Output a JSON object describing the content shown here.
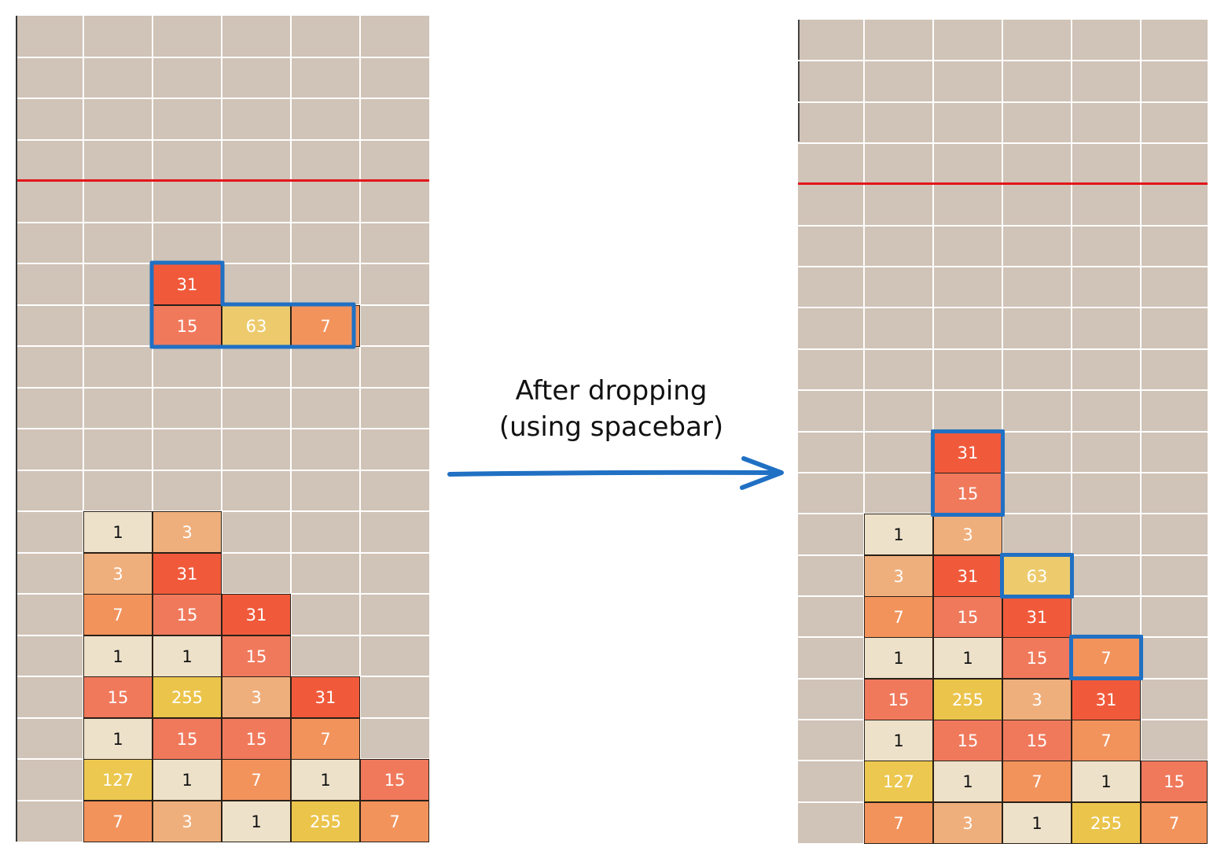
{
  "caption": {
    "line1": "After dropping",
    "line2": "(using spacebar)"
  },
  "colors": {
    "board_bg": "#d0c3b7",
    "grid": "#ffffff",
    "limit_line": "#e3151a",
    "highlight": "#2070c3",
    "tile_1": "#ede1ca",
    "tile_3": "#efaf7c",
    "tile_7": "#f2935c",
    "tile_15": "#f0795c",
    "tile_31": "#f05a3b",
    "tile_63": "#edcb6d",
    "tile_127": "#ecc850",
    "tile_255": "#ebc44b"
  },
  "boards": [
    {
      "id": "before",
      "columns": 6,
      "rows": 20,
      "limit_row": 4,
      "tiles": [
        {
          "col": 2,
          "row": 6,
          "value": "31"
        },
        {
          "col": 2,
          "row": 7,
          "value": "15"
        },
        {
          "col": 3,
          "row": 7,
          "value": "63"
        },
        {
          "col": 4,
          "row": 7,
          "value": "7"
        },
        {
          "col": 1,
          "row": 12,
          "value": "1"
        },
        {
          "col": 2,
          "row": 12,
          "value": "3"
        },
        {
          "col": 1,
          "row": 13,
          "value": "3"
        },
        {
          "col": 2,
          "row": 13,
          "value": "31"
        },
        {
          "col": 1,
          "row": 14,
          "value": "7"
        },
        {
          "col": 2,
          "row": 14,
          "value": "15"
        },
        {
          "col": 3,
          "row": 14,
          "value": "31"
        },
        {
          "col": 1,
          "row": 15,
          "value": "1"
        },
        {
          "col": 2,
          "row": 15,
          "value": "1"
        },
        {
          "col": 3,
          "row": 15,
          "value": "15"
        },
        {
          "col": 1,
          "row": 16,
          "value": "15"
        },
        {
          "col": 2,
          "row": 16,
          "value": "255"
        },
        {
          "col": 3,
          "row": 16,
          "value": "3"
        },
        {
          "col": 4,
          "row": 16,
          "value": "31"
        },
        {
          "col": 1,
          "row": 17,
          "value": "1"
        },
        {
          "col": 2,
          "row": 17,
          "value": "15"
        },
        {
          "col": 3,
          "row": 17,
          "value": "15"
        },
        {
          "col": 4,
          "row": 17,
          "value": "7"
        },
        {
          "col": 1,
          "row": 18,
          "value": "127"
        },
        {
          "col": 2,
          "row": 18,
          "value": "1"
        },
        {
          "col": 3,
          "row": 18,
          "value": "7"
        },
        {
          "col": 4,
          "row": 18,
          "value": "1"
        },
        {
          "col": 5,
          "row": 18,
          "value": "15"
        },
        {
          "col": 1,
          "row": 19,
          "value": "7"
        },
        {
          "col": 2,
          "row": 19,
          "value": "3"
        },
        {
          "col": 3,
          "row": 19,
          "value": "1"
        },
        {
          "col": 4,
          "row": 19,
          "value": "255"
        },
        {
          "col": 5,
          "row": 19,
          "value": "7"
        }
      ]
    },
    {
      "id": "after",
      "columns": 6,
      "rows": 20,
      "limit_row": 4,
      "tiles": [
        {
          "col": 2,
          "row": 10,
          "value": "31"
        },
        {
          "col": 2,
          "row": 11,
          "value": "15"
        },
        {
          "col": 1,
          "row": 12,
          "value": "1"
        },
        {
          "col": 2,
          "row": 12,
          "value": "3"
        },
        {
          "col": 1,
          "row": 13,
          "value": "3"
        },
        {
          "col": 2,
          "row": 13,
          "value": "31"
        },
        {
          "col": 3,
          "row": 13,
          "value": "63"
        },
        {
          "col": 1,
          "row": 14,
          "value": "7"
        },
        {
          "col": 2,
          "row": 14,
          "value": "15"
        },
        {
          "col": 3,
          "row": 14,
          "value": "31"
        },
        {
          "col": 1,
          "row": 15,
          "value": "1"
        },
        {
          "col": 2,
          "row": 15,
          "value": "1"
        },
        {
          "col": 3,
          "row": 15,
          "value": "15"
        },
        {
          "col": 4,
          "row": 15,
          "value": "7"
        },
        {
          "col": 1,
          "row": 16,
          "value": "15"
        },
        {
          "col": 2,
          "row": 16,
          "value": "255"
        },
        {
          "col": 3,
          "row": 16,
          "value": "3"
        },
        {
          "col": 4,
          "row": 16,
          "value": "31"
        },
        {
          "col": 1,
          "row": 17,
          "value": "1"
        },
        {
          "col": 2,
          "row": 17,
          "value": "15"
        },
        {
          "col": 3,
          "row": 17,
          "value": "15"
        },
        {
          "col": 4,
          "row": 17,
          "value": "7"
        },
        {
          "col": 1,
          "row": 18,
          "value": "127"
        },
        {
          "col": 2,
          "row": 18,
          "value": "1"
        },
        {
          "col": 3,
          "row": 18,
          "value": "7"
        },
        {
          "col": 4,
          "row": 18,
          "value": "1"
        },
        {
          "col": 5,
          "row": 18,
          "value": "15"
        },
        {
          "col": 1,
          "row": 19,
          "value": "7"
        },
        {
          "col": 2,
          "row": 19,
          "value": "3"
        },
        {
          "col": 3,
          "row": 19,
          "value": "1"
        },
        {
          "col": 4,
          "row": 19,
          "value": "255"
        },
        {
          "col": 5,
          "row": 19,
          "value": "7"
        }
      ]
    }
  ]
}
